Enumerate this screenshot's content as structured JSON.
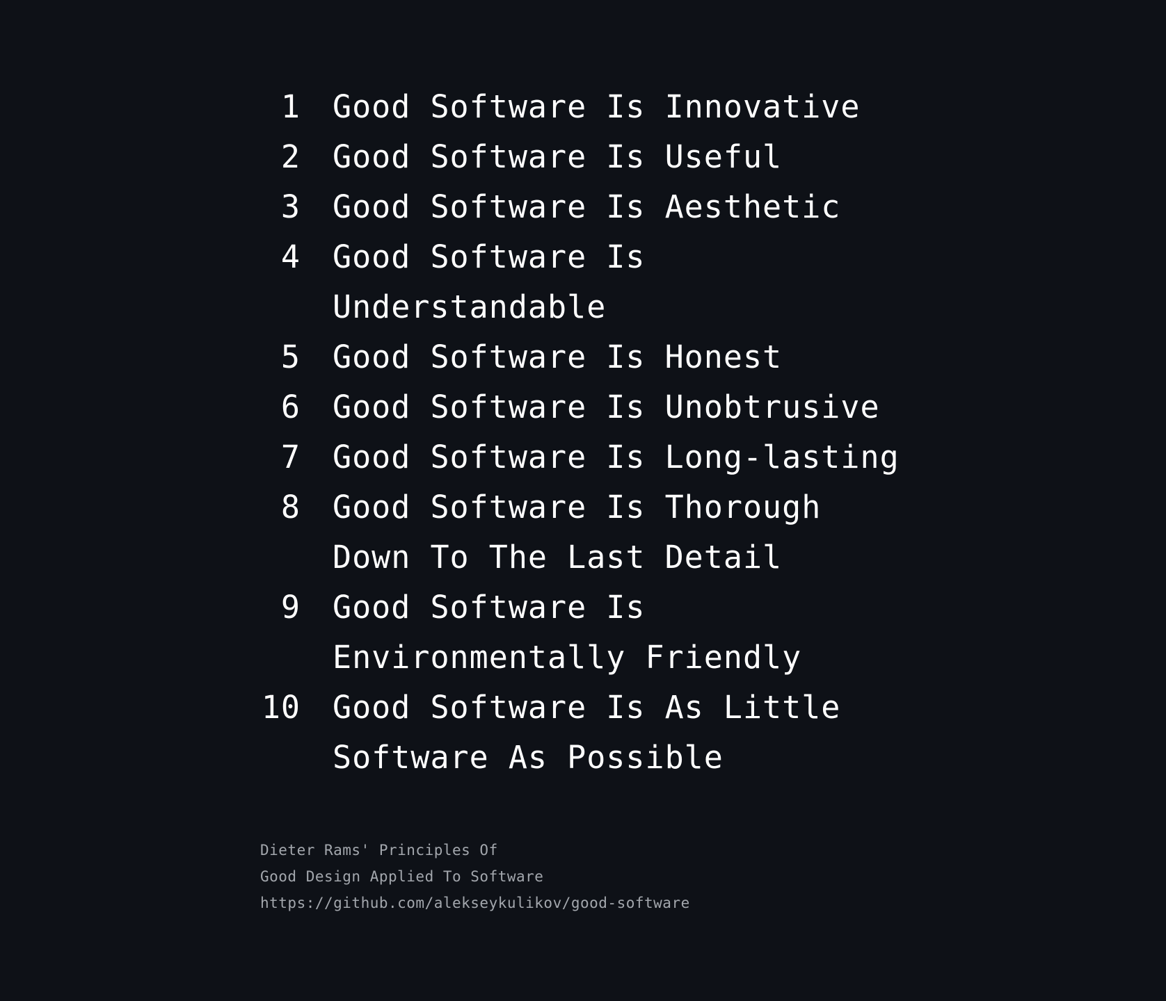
{
  "principles": [
    {
      "number": "1",
      "text": "Good Software Is Innovative"
    },
    {
      "number": "2",
      "text": "Good Software Is Useful"
    },
    {
      "number": "3",
      "text": "Good Software Is Aesthetic"
    },
    {
      "number": "4",
      "text": "Good Software Is Understandable"
    },
    {
      "number": "5",
      "text": "Good Software Is Honest"
    },
    {
      "number": "6",
      "text": "Good Software Is Unobtrusive"
    },
    {
      "number": "7",
      "text": "Good Software Is Long-lasting"
    },
    {
      "number": "8",
      "text": "Good Software Is Thorough Down To The Last Detail"
    },
    {
      "number": "9",
      "text": "Good Software Is Environmentally Friendly"
    },
    {
      "number": "10",
      "text": "Good Software Is As Little Software As Possible"
    }
  ],
  "footer": {
    "line1": "Dieter Rams' Principles Of",
    "line2": "Good Design Applied To Software",
    "line3": "https://github.com/alekseykulikov/good-software"
  },
  "colors": {
    "background": "#0e1117",
    "text": "#ffffff",
    "muted": "#a3a7ad"
  }
}
